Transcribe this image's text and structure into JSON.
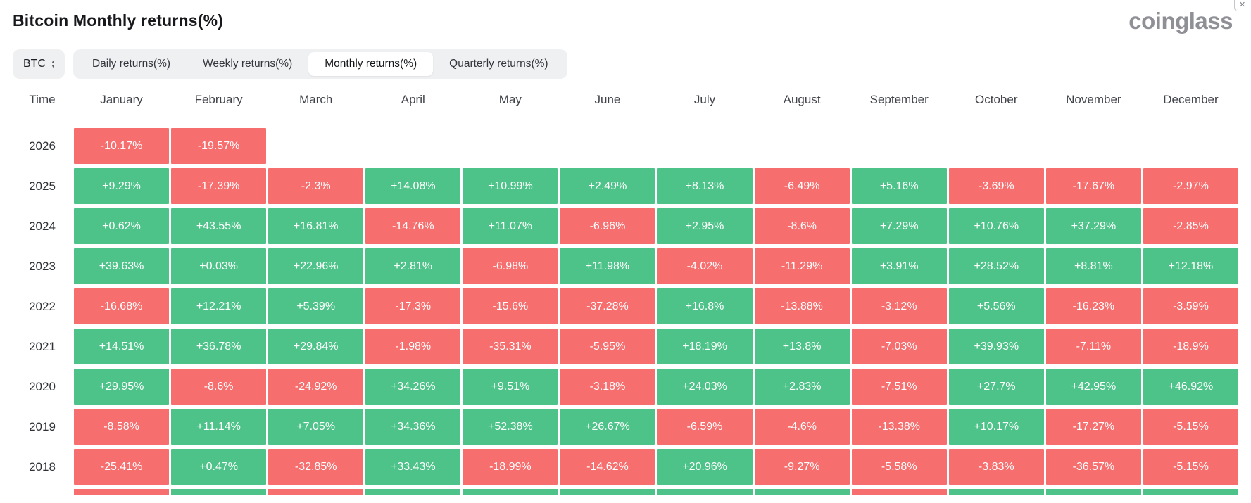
{
  "window": {
    "close_icon": "✕"
  },
  "header": {
    "title": "Bitcoin Monthly returns(%)",
    "logo": "coinglass"
  },
  "controls": {
    "symbol_select": {
      "label": "BTC",
      "sort_icon_up": "▲",
      "sort_icon_down": "▼"
    },
    "tabs": [
      {
        "label": "Daily returns(%)",
        "active": false
      },
      {
        "label": "Weekly returns(%)",
        "active": false
      },
      {
        "label": "Monthly returns(%)",
        "active": true
      },
      {
        "label": "Quarterly returns(%)",
        "active": false
      }
    ]
  },
  "colors": {
    "positive": "#4ec389",
    "negative": "#f66e6e"
  },
  "chart_data": {
    "type": "heatmap",
    "title": "Bitcoin Monthly returns(%)",
    "columns": [
      "Time",
      "January",
      "February",
      "March",
      "April",
      "May",
      "June",
      "July",
      "August",
      "September",
      "October",
      "November",
      "December"
    ],
    "rows": [
      {
        "year": "2026",
        "values": [
          "-10.17%",
          "-19.57%",
          "",
          "",
          "",
          "",
          "",
          "",
          "",
          "",
          "",
          ""
        ]
      },
      {
        "year": "2025",
        "values": [
          "+9.29%",
          "-17.39%",
          "-2.3%",
          "+14.08%",
          "+10.99%",
          "+2.49%",
          "+8.13%",
          "-6.49%",
          "+5.16%",
          "-3.69%",
          "-17.67%",
          "-2.97%"
        ]
      },
      {
        "year": "2024",
        "values": [
          "+0.62%",
          "+43.55%",
          "+16.81%",
          "-14.76%",
          "+11.07%",
          "-6.96%",
          "+2.95%",
          "-8.6%",
          "+7.29%",
          "+10.76%",
          "+37.29%",
          "-2.85%"
        ]
      },
      {
        "year": "2023",
        "values": [
          "+39.63%",
          "+0.03%",
          "+22.96%",
          "+2.81%",
          "-6.98%",
          "+11.98%",
          "-4.02%",
          "-11.29%",
          "+3.91%",
          "+28.52%",
          "+8.81%",
          "+12.18%"
        ]
      },
      {
        "year": "2022",
        "values": [
          "-16.68%",
          "+12.21%",
          "+5.39%",
          "-17.3%",
          "-15.6%",
          "-37.28%",
          "+16.8%",
          "-13.88%",
          "-3.12%",
          "+5.56%",
          "-16.23%",
          "-3.59%"
        ]
      },
      {
        "year": "2021",
        "values": [
          "+14.51%",
          "+36.78%",
          "+29.84%",
          "-1.98%",
          "-35.31%",
          "-5.95%",
          "+18.19%",
          "+13.8%",
          "-7.03%",
          "+39.93%",
          "-7.11%",
          "-18.9%"
        ]
      },
      {
        "year": "2020",
        "values": [
          "+29.95%",
          "-8.6%",
          "-24.92%",
          "+34.26%",
          "+9.51%",
          "-3.18%",
          "+24.03%",
          "+2.83%",
          "-7.51%",
          "+27.7%",
          "+42.95%",
          "+46.92%"
        ]
      },
      {
        "year": "2019",
        "values": [
          "-8.58%",
          "+11.14%",
          "+7.05%",
          "+34.36%",
          "+52.38%",
          "+26.67%",
          "-6.59%",
          "-4.6%",
          "-13.38%",
          "+10.17%",
          "-17.27%",
          "-5.15%"
        ]
      },
      {
        "year": "2018",
        "values": [
          "-25.41%",
          "+0.47%",
          "-32.85%",
          "+33.43%",
          "-18.99%",
          "-14.62%",
          "+20.96%",
          "-9.27%",
          "-5.58%",
          "-3.83%",
          "-36.57%",
          "-5.15%"
        ]
      }
    ],
    "partial_bottom_row_signs": [
      "negative",
      "positive",
      "negative",
      "positive",
      "positive",
      "positive",
      "positive",
      "positive",
      "negative",
      "positive",
      "positive",
      "positive"
    ]
  }
}
